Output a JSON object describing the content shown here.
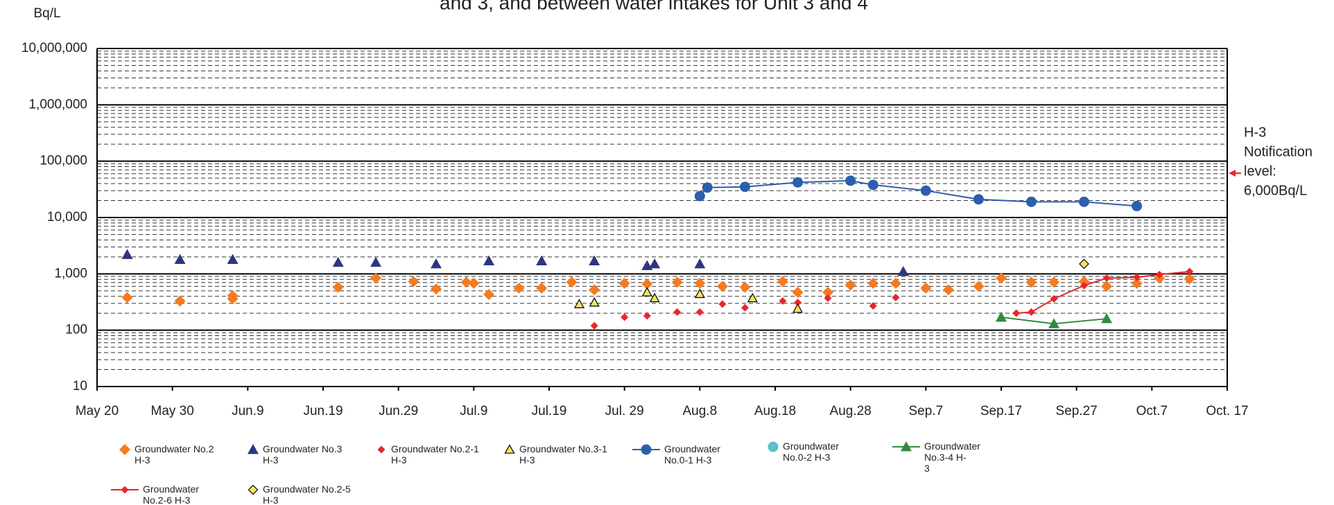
{
  "chart_data": {
    "type": "scatter",
    "title": "and 3, and between water intakes for Unit 3 and 4",
    "y_label": "Bq/L",
    "log_y": true,
    "grid": true,
    "minor_grid": true,
    "xlim": [
      0,
      150
    ],
    "xticks": [
      {
        "value": 0,
        "label": "May 20"
      },
      {
        "value": 10,
        "label": "May 30"
      },
      {
        "value": 20,
        "label": "Jun.9"
      },
      {
        "value": 30,
        "label": "Jun.19"
      },
      {
        "value": 40,
        "label": "Jun.29"
      },
      {
        "value": 50,
        "label": "Jul.9"
      },
      {
        "value": 60,
        "label": "Jul.19"
      },
      {
        "value": 70,
        "label": "Jul. 29"
      },
      {
        "value": 80,
        "label": "Aug.8"
      },
      {
        "value": 90,
        "label": "Aug.18"
      },
      {
        "value": 100,
        "label": "Aug.28"
      },
      {
        "value": 110,
        "label": "Sep.7"
      },
      {
        "value": 120,
        "label": "Sep.17"
      },
      {
        "value": 130,
        "label": "Sep.27"
      },
      {
        "value": 140,
        "label": "Oct.7"
      },
      {
        "value": 150,
        "label": "Oct. 17"
      }
    ],
    "ylim": [
      10,
      10000000
    ],
    "yticks": [
      10,
      100,
      {
        "value": 1000,
        "label": "1,000"
      },
      {
        "value": 10000,
        "label": "10,000"
      },
      {
        "value": 100000,
        "label": "100,000"
      },
      {
        "value": 1000000,
        "label": "1,000,000"
      },
      {
        "value": 10000000,
        "label": "10,000,000"
      }
    ],
    "annotation": [
      "H-3",
      "Notification",
      "level:",
      "6,000Bq/L"
    ],
    "annotation_color": "#e8262a",
    "series": [
      {
        "name": "Groundwater No.2 H-3",
        "color": "#f47b20",
        "marker": "diamond",
        "line": false,
        "x": [
          4,
          11,
          18,
          18,
          32,
          37,
          42,
          45,
          49,
          50,
          52,
          56,
          59,
          63,
          66,
          70,
          73,
          77,
          80,
          83,
          86,
          91,
          93,
          97,
          100,
          103,
          106,
          110,
          113,
          117,
          120,
          124,
          127,
          131,
          134,
          138,
          141,
          145
        ],
        "values": [
          380,
          330,
          410,
          360,
          580,
          840,
          730,
          540,
          710,
          680,
          430,
          560,
          560,
          710,
          520,
          680,
          660,
          710,
          680,
          600,
          580,
          730,
          470,
          470,
          630,
          680,
          680,
          560,
          520,
          600,
          840,
          710,
          710,
          730,
          600,
          680,
          840,
          810
        ]
      },
      {
        "name": "Groundwater No.3 H-3",
        "color": "#2e3580",
        "marker": "triangle",
        "line": false,
        "x": [
          4,
          11,
          18,
          32,
          37,
          45,
          52,
          59,
          66,
          73,
          74,
          80,
          107
        ],
        "values": [
          2200,
          1800,
          1800,
          1600,
          1600,
          1500,
          1700,
          1700,
          1700,
          1400,
          1500,
          1500,
          1100
        ]
      },
      {
        "name": "Groundwater No.2-1 H-3",
        "color": "#e8262a",
        "marker": "small-diamond",
        "line": false,
        "x": [
          66,
          70,
          73,
          77,
          80,
          83,
          86,
          91,
          93,
          97,
          103,
          106
        ],
        "values": [
          120,
          170,
          180,
          210,
          210,
          290,
          250,
          330,
          310,
          370,
          270,
          380
        ]
      },
      {
        "name": "Groundwater No.3-1 H-3",
        "color": "#f7e463",
        "marker": "triangle-outline",
        "line": false,
        "x": [
          64,
          66,
          73,
          74,
          80,
          87,
          93
        ],
        "values": [
          290,
          310,
          470,
          370,
          440,
          370,
          240
        ]
      },
      {
        "name": "Groundwater No.0-1 H-3",
        "color": "#2b5fad",
        "marker": "circle",
        "line": true,
        "x": [
          80,
          81,
          86,
          93,
          100,
          103,
          110,
          117,
          124,
          131,
          138
        ],
        "values": [
          24000,
          34000,
          35000,
          42000,
          45000,
          38000,
          30000,
          21000,
          19000,
          19000,
          16000
        ]
      },
      {
        "name": "Groundwater No.0-2 H-3",
        "color": "#5bc0c8",
        "marker": "circle",
        "line": false,
        "x": [],
        "values": []
      },
      {
        "name": "Groundwater No.3-4 H-3",
        "color": "#2f8c3f",
        "marker": "triangle",
        "line": true,
        "x": [
          120,
          127,
          134
        ],
        "values": [
          170,
          130,
          160
        ]
      },
      {
        "name": "Groundwater No.2-6 H-3",
        "color": "#e8262a",
        "marker": "small-diamond",
        "line": true,
        "x": [
          122,
          124,
          127,
          131,
          134,
          138,
          141,
          145
        ],
        "values": [
          200,
          210,
          360,
          620,
          840,
          870,
          970,
          1100
        ]
      },
      {
        "name": "Groundwater No.2-5 H-3",
        "color": "#f7e463",
        "marker": "diamond-outline",
        "line": false,
        "x": [
          131
        ],
        "values": [
          1500
        ]
      }
    ]
  }
}
